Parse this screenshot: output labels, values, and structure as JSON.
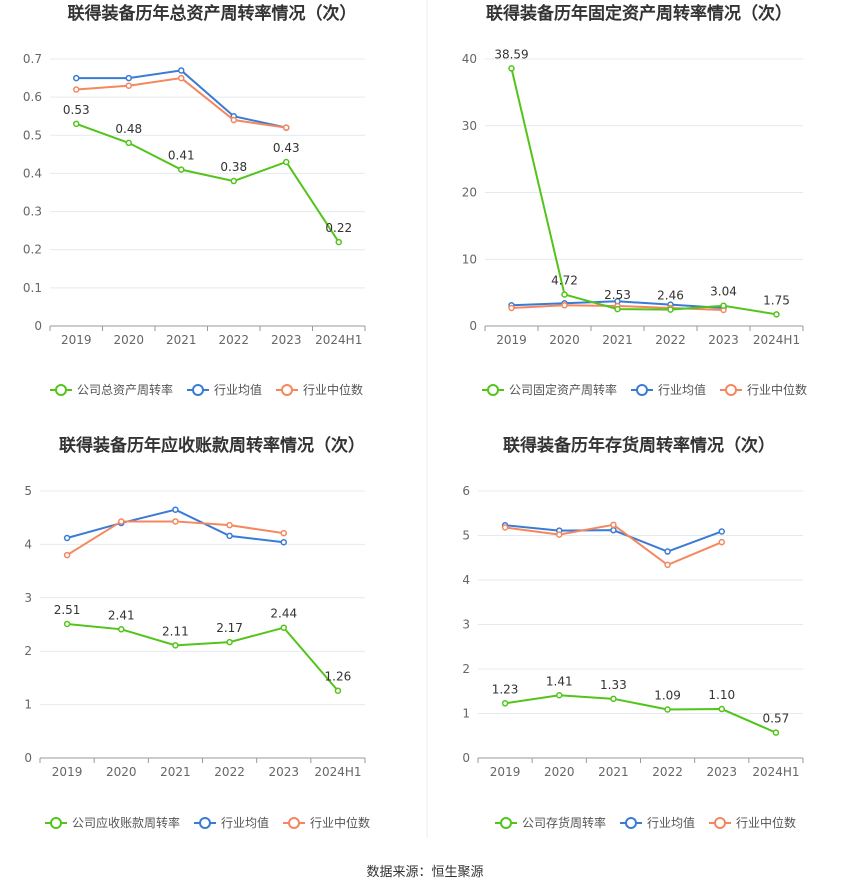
{
  "colors": {
    "company": "#52c41a",
    "industry_avg": "#3a7bd5",
    "industry_median": "#f5875e",
    "grid": "#e6e9f0",
    "axis": "#999999",
    "divider": "#eeeeee"
  },
  "legend": {
    "industry_avg": "行业均值",
    "industry_median": "行业中位数"
  },
  "source": "数据来源：恒生聚源",
  "chart_data": [
    {
      "type": "line",
      "title": "联得装备历年总资产周转率情况（次）",
      "categories": [
        "2019",
        "2020",
        "2021",
        "2022",
        "2023",
        "2024H1"
      ],
      "yticks": [
        "0",
        "0.1",
        "0.2",
        "0.3",
        "0.4",
        "0.5",
        "0.6",
        "0.7"
      ],
      "ylim": [
        0,
        0.7
      ],
      "series": [
        {
          "name": "公司总资产周转率",
          "key": "company",
          "values": [
            0.53,
            0.48,
            0.41,
            0.38,
            0.43,
            0.22
          ],
          "labels": [
            "0.53",
            "0.48",
            "0.41",
            "0.38",
            "0.43",
            "0.22"
          ]
        },
        {
          "name": "行业均值",
          "key": "industry_avg",
          "values": [
            0.65,
            0.65,
            0.67,
            0.55,
            0.52,
            null
          ]
        },
        {
          "name": "行业中位数",
          "key": "industry_median",
          "values": [
            0.62,
            0.63,
            0.65,
            0.54,
            0.52,
            null
          ]
        }
      ]
    },
    {
      "type": "line",
      "title": "联得装备历年固定资产周转率情况（次）",
      "categories": [
        "2019",
        "2020",
        "2021",
        "2022",
        "2023",
        "2024H1"
      ],
      "yticks": [
        "0",
        "10",
        "20",
        "30",
        "40"
      ],
      "ylim": [
        0,
        40
      ],
      "series": [
        {
          "name": "公司固定资产周转率",
          "key": "company",
          "values": [
            38.59,
            4.72,
            2.53,
            2.46,
            3.04,
            1.75
          ],
          "labels": [
            "38.59",
            "4.72",
            "2.53",
            "2.46",
            "3.04",
            "1.75"
          ]
        },
        {
          "name": "行业均值",
          "key": "industry_avg",
          "values": [
            3.1,
            3.4,
            3.7,
            3.2,
            2.7,
            null
          ]
        },
        {
          "name": "行业中位数",
          "key": "industry_median",
          "values": [
            2.7,
            3.1,
            3.0,
            2.7,
            2.4,
            null
          ]
        }
      ]
    },
    {
      "type": "line",
      "title": "联得装备历年应收账款周转率情况（次）",
      "categories": [
        "2019",
        "2020",
        "2021",
        "2022",
        "2023",
        "2024H1"
      ],
      "yticks": [
        "0",
        "1",
        "2",
        "3",
        "4",
        "5"
      ],
      "ylim": [
        0,
        5
      ],
      "series": [
        {
          "name": "公司应收账款周转率",
          "key": "company",
          "values": [
            2.51,
            2.41,
            2.11,
            2.17,
            2.44,
            1.26
          ],
          "labels": [
            "2.51",
            "2.41",
            "2.11",
            "2.17",
            "2.44",
            "1.26"
          ]
        },
        {
          "name": "行业均值",
          "key": "industry_avg",
          "values": [
            4.12,
            4.4,
            4.65,
            4.16,
            4.04,
            null
          ]
        },
        {
          "name": "行业中位数",
          "key": "industry_median",
          "values": [
            3.8,
            4.43,
            4.43,
            4.36,
            4.21,
            null
          ]
        }
      ]
    },
    {
      "type": "line",
      "title": "联得装备历年存货周转率情况（次）",
      "categories": [
        "2019",
        "2020",
        "2021",
        "2022",
        "2023",
        "2024H1"
      ],
      "yticks": [
        "0",
        "1",
        "2",
        "3",
        "4",
        "5",
        "6"
      ],
      "ylim": [
        0,
        6
      ],
      "series": [
        {
          "name": "公司存货周转率",
          "key": "company",
          "values": [
            1.23,
            1.41,
            1.33,
            1.09,
            1.1,
            0.57
          ],
          "labels": [
            "1.23",
            "1.41",
            "1.33",
            "1.09",
            "1.10",
            "0.57"
          ]
        },
        {
          "name": "行业均值",
          "key": "industry_avg",
          "values": [
            5.23,
            5.11,
            5.12,
            4.64,
            5.09,
            null
          ]
        },
        {
          "name": "行业中位数",
          "key": "industry_median",
          "values": [
            5.18,
            5.02,
            5.24,
            4.34,
            4.85,
            null
          ]
        }
      ]
    }
  ]
}
